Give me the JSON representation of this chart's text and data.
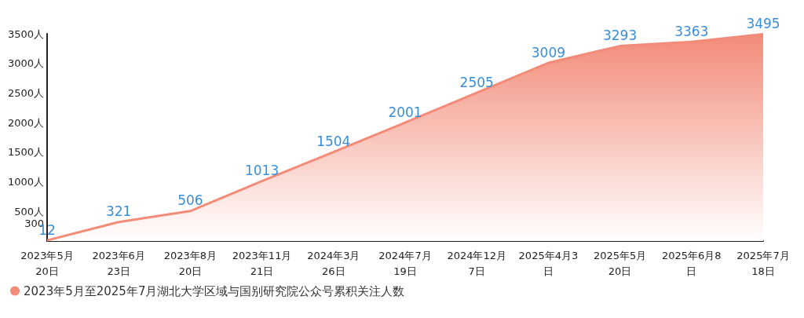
{
  "chart_data": {
    "type": "area",
    "categories": [
      "2023年5月\n20日",
      "2023年6月\n23日",
      "2023年8月\n20日",
      "2023年11月\n21日",
      "2024年3月\n26日",
      "2024年7月\n19日",
      "2024年12月\n7日",
      "2025年4月3\n日",
      "2025年5月\n20日",
      "2025年6月8\n日",
      "2025年7月\n18日"
    ],
    "series": [
      {
        "name": "2023年5月至2025年7月湖北大学区域与国别研究院公众号累积关注人数",
        "color": "#f28b78",
        "values": [
          12,
          321,
          506,
          1013,
          1504,
          2001,
          2505,
          3009,
          3293,
          3363,
          3495
        ]
      }
    ],
    "ylim": [
      0,
      3500
    ],
    "yticks": [
      {
        "value": 300,
        "label": "300"
      },
      {
        "value": 500,
        "label": "500人"
      },
      {
        "value": 1000,
        "label": "1000人"
      },
      {
        "value": 1500,
        "label": "1500人"
      },
      {
        "value": 2000,
        "label": "2000人"
      },
      {
        "value": 2500,
        "label": "2500人"
      },
      {
        "value": 3000,
        "label": "3000人"
      },
      {
        "value": 3500,
        "label": "3500人"
      }
    ],
    "data_labels": true,
    "grid": false,
    "legend": "bottom left",
    "marker": "none",
    "line_style": "solid"
  }
}
